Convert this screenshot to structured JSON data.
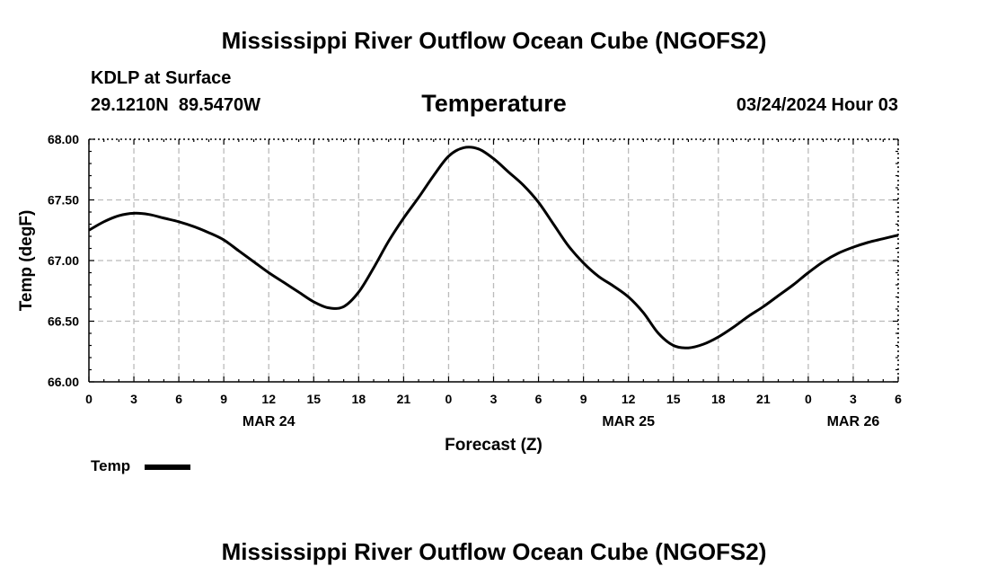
{
  "header": {
    "title": "Mississippi River Outflow Ocean Cube (NGOFS2)",
    "station": "KDLP at Surface",
    "coords": "29.1210N  89.5470W",
    "chart_title": "Temperature",
    "datetime": "03/24/2024 Hour 03"
  },
  "footer": {
    "title": "Mississippi River Outflow Ocean Cube (NGOFS2)"
  },
  "legend": {
    "label": "Temp"
  },
  "colors": {
    "line": "#000000",
    "grid": "#bbbbbb"
  },
  "chart_data": {
    "type": "line",
    "title": "Temperature",
    "xlabel": "Forecast (Z)",
    "ylabel": "Temp (degF)",
    "xlim": [
      0,
      54
    ],
    "ylim": [
      66.0,
      68.0
    ],
    "x_tick_values": [
      0,
      3,
      6,
      9,
      12,
      15,
      18,
      21,
      24,
      27,
      30,
      33,
      36,
      39,
      42,
      45,
      48,
      51,
      54
    ],
    "x_tick_labels": [
      "0",
      "3",
      "6",
      "9",
      "12",
      "15",
      "18",
      "21",
      "0",
      "3",
      "6",
      "9",
      "12",
      "15",
      "18",
      "21",
      "0",
      "3",
      "6"
    ],
    "day_labels": [
      {
        "x": 12,
        "label": "MAR 24"
      },
      {
        "x": 36,
        "label": "MAR 25"
      },
      {
        "x": 51,
        "label": "MAR 26"
      }
    ],
    "y_tick_values": [
      66.0,
      66.5,
      67.0,
      67.5,
      68.0
    ],
    "y_tick_labels": [
      "66.00",
      "66.50",
      "67.00",
      "67.50",
      "68.00"
    ],
    "grid": true,
    "series": [
      {
        "name": "Temp",
        "x": [
          0,
          1,
          2,
          3,
          4,
          5,
          6,
          7,
          8,
          9,
          10,
          11,
          12,
          13,
          14,
          15,
          16,
          17,
          18,
          19,
          20,
          21,
          22,
          23,
          24,
          25,
          26,
          27,
          28,
          29,
          30,
          31,
          32,
          33,
          34,
          35,
          36,
          37,
          38,
          39,
          40,
          41,
          42,
          43,
          44,
          45,
          46,
          47,
          48,
          49,
          50,
          51,
          52,
          53,
          54
        ],
        "values": [
          67.25,
          67.32,
          67.37,
          67.39,
          67.38,
          67.35,
          67.32,
          67.28,
          67.23,
          67.17,
          67.08,
          66.99,
          66.9,
          66.82,
          66.74,
          66.66,
          66.61,
          66.62,
          66.74,
          66.94,
          67.16,
          67.35,
          67.52,
          67.7,
          67.86,
          67.93,
          67.92,
          67.84,
          67.73,
          67.62,
          67.48,
          67.3,
          67.12,
          66.98,
          66.87,
          66.79,
          66.7,
          66.57,
          66.4,
          66.3,
          66.28,
          66.31,
          66.37,
          66.45,
          66.54,
          66.62,
          66.71,
          66.8,
          66.9,
          66.99,
          67.06,
          67.11,
          67.15,
          67.18,
          67.21
        ]
      }
    ]
  }
}
